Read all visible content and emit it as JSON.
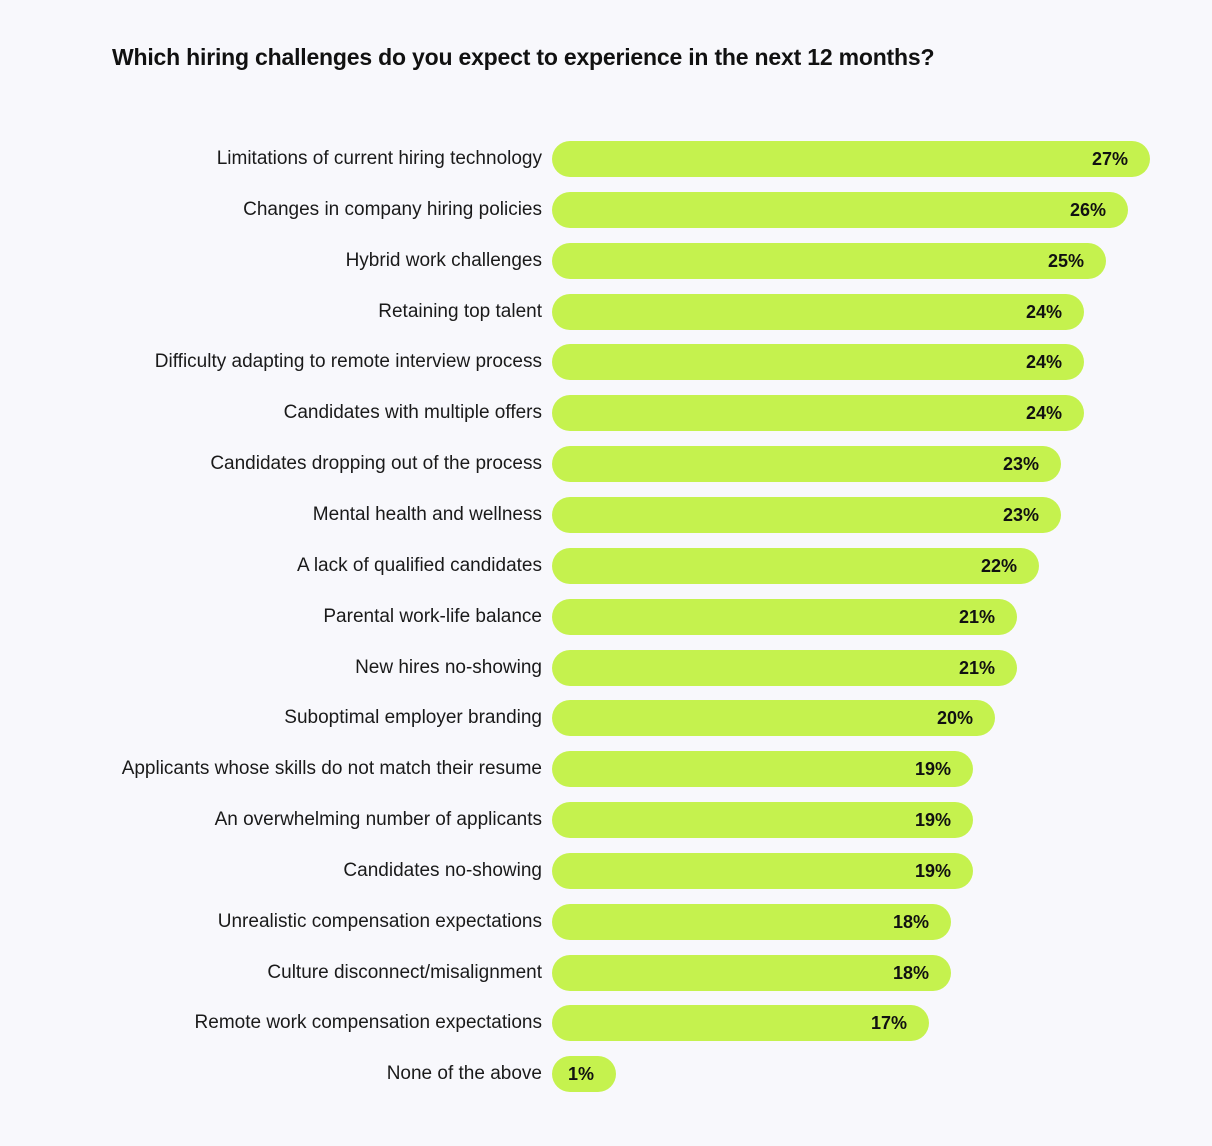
{
  "chart_data": {
    "type": "bar",
    "orientation": "horizontal",
    "title": "Which hiring challenges do you expect to experience in the next 12 months?",
    "categories": [
      "Limitations of current hiring technology",
      "Changes in company hiring policies",
      "Hybrid work challenges",
      "Retaining top talent",
      "Difficulty adapting to remote interview process",
      "Candidates with multiple offers",
      "Candidates dropping out of the process",
      "Mental health and wellness",
      "A lack of qualified candidates",
      "Parental work-life balance",
      "New hires no-showing",
      "Suboptimal employer branding",
      "Applicants whose skills do not match their resume",
      "An overwhelming number of applicants",
      "Candidates no-showing",
      "Unrealistic compensation expectations",
      "Culture disconnect/misalignment",
      "Remote work compensation expectations",
      "None of the above"
    ],
    "values": [
      27,
      26,
      25,
      24,
      24,
      24,
      23,
      23,
      22,
      21,
      21,
      20,
      19,
      19,
      19,
      18,
      18,
      17,
      1
    ],
    "value_labels": [
      "27%",
      "26%",
      "25%",
      "24%",
      "24%",
      "24%",
      "23%",
      "23%",
      "22%",
      "21%",
      "21%",
      "20%",
      "19%",
      "19%",
      "19%",
      "18%",
      "18%",
      "17%",
      "1%"
    ],
    "unit": "%",
    "bar_color": "#c5f24e",
    "grid": false,
    "legend": "none"
  }
}
